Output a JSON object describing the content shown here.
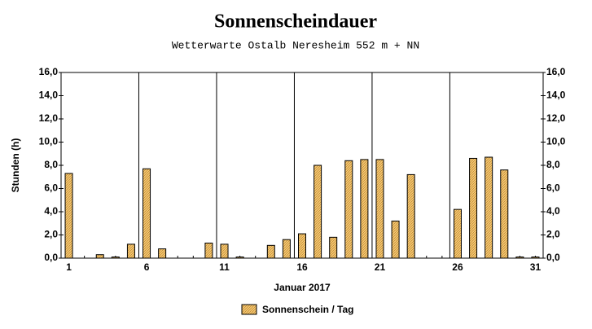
{
  "chart_data": {
    "type": "bar",
    "title": "Sonnenscheindauer",
    "subtitle": "Wetterwarte Ostalb Neresheim 552 m + NN",
    "ylabel": "Stunden  (h)",
    "xlabel": "Januar 2017",
    "categories": [
      "1",
      null,
      null,
      null,
      null,
      "6",
      null,
      null,
      null,
      null,
      "11",
      null,
      null,
      null,
      null,
      "16",
      null,
      null,
      null,
      null,
      "21",
      null,
      null,
      null,
      null,
      "26",
      null,
      null,
      null,
      null,
      "31"
    ],
    "series": [
      {
        "name": "Sonnenschein / Tag",
        "color": "#f3c673",
        "values": [
          7.3,
          0,
          0.3,
          0.1,
          1.2,
          7.7,
          0.8,
          0,
          0,
          1.3,
          1.2,
          0.1,
          0,
          1.1,
          1.6,
          2.1,
          8.0,
          1.8,
          8.4,
          8.5,
          8.5,
          3.2,
          7.2,
          0,
          0,
          4.2,
          8.6,
          8.7,
          7.6,
          0.1,
          0.1
        ]
      }
    ],
    "ylim": [
      0,
      16
    ],
    "yticks": [
      {
        "value": 0,
        "label": "0,0"
      },
      {
        "value": 2,
        "label": "2,0"
      },
      {
        "value": 4,
        "label": "4,0"
      },
      {
        "value": 6,
        "label": "6,0"
      },
      {
        "value": 8,
        "label": "8,0"
      },
      {
        "value": 10,
        "label": "10,0"
      },
      {
        "value": 12,
        "label": "12,0"
      },
      {
        "value": 14,
        "label": "14,0"
      },
      {
        "value": 16,
        "label": "16,0"
      }
    ],
    "grid": false,
    "legend": "bottom"
  }
}
